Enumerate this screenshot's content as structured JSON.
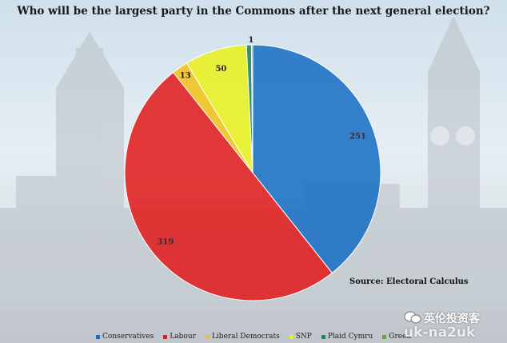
{
  "chart_data": {
    "type": "pie",
    "title": "Who will be the largest party in the Commons after the next general election?",
    "source": "Source: Electoral Calculus",
    "series": [
      {
        "name": "Conservatives",
        "value": 251,
        "color": "#1a6fc4",
        "label": "251"
      },
      {
        "name": "Labour",
        "value": 319,
        "color": "#e01e1e",
        "label": "319"
      },
      {
        "name": "Liberal Democrats",
        "value": 13,
        "color": "#f2c21a",
        "label": "13"
      },
      {
        "name": "SNP",
        "value": 50,
        "color": "#e8f020",
        "label": "50"
      },
      {
        "name": "Plaid Cymru",
        "value": 4,
        "color": "#1a8a55",
        "label": ""
      },
      {
        "name": "Green",
        "value": 1,
        "color": "#5aaa3c",
        "label": "1"
      }
    ],
    "legend_position": "bottom"
  },
  "watermark": {
    "cn": "英伦投资客",
    "en": "uk-na2uk"
  }
}
